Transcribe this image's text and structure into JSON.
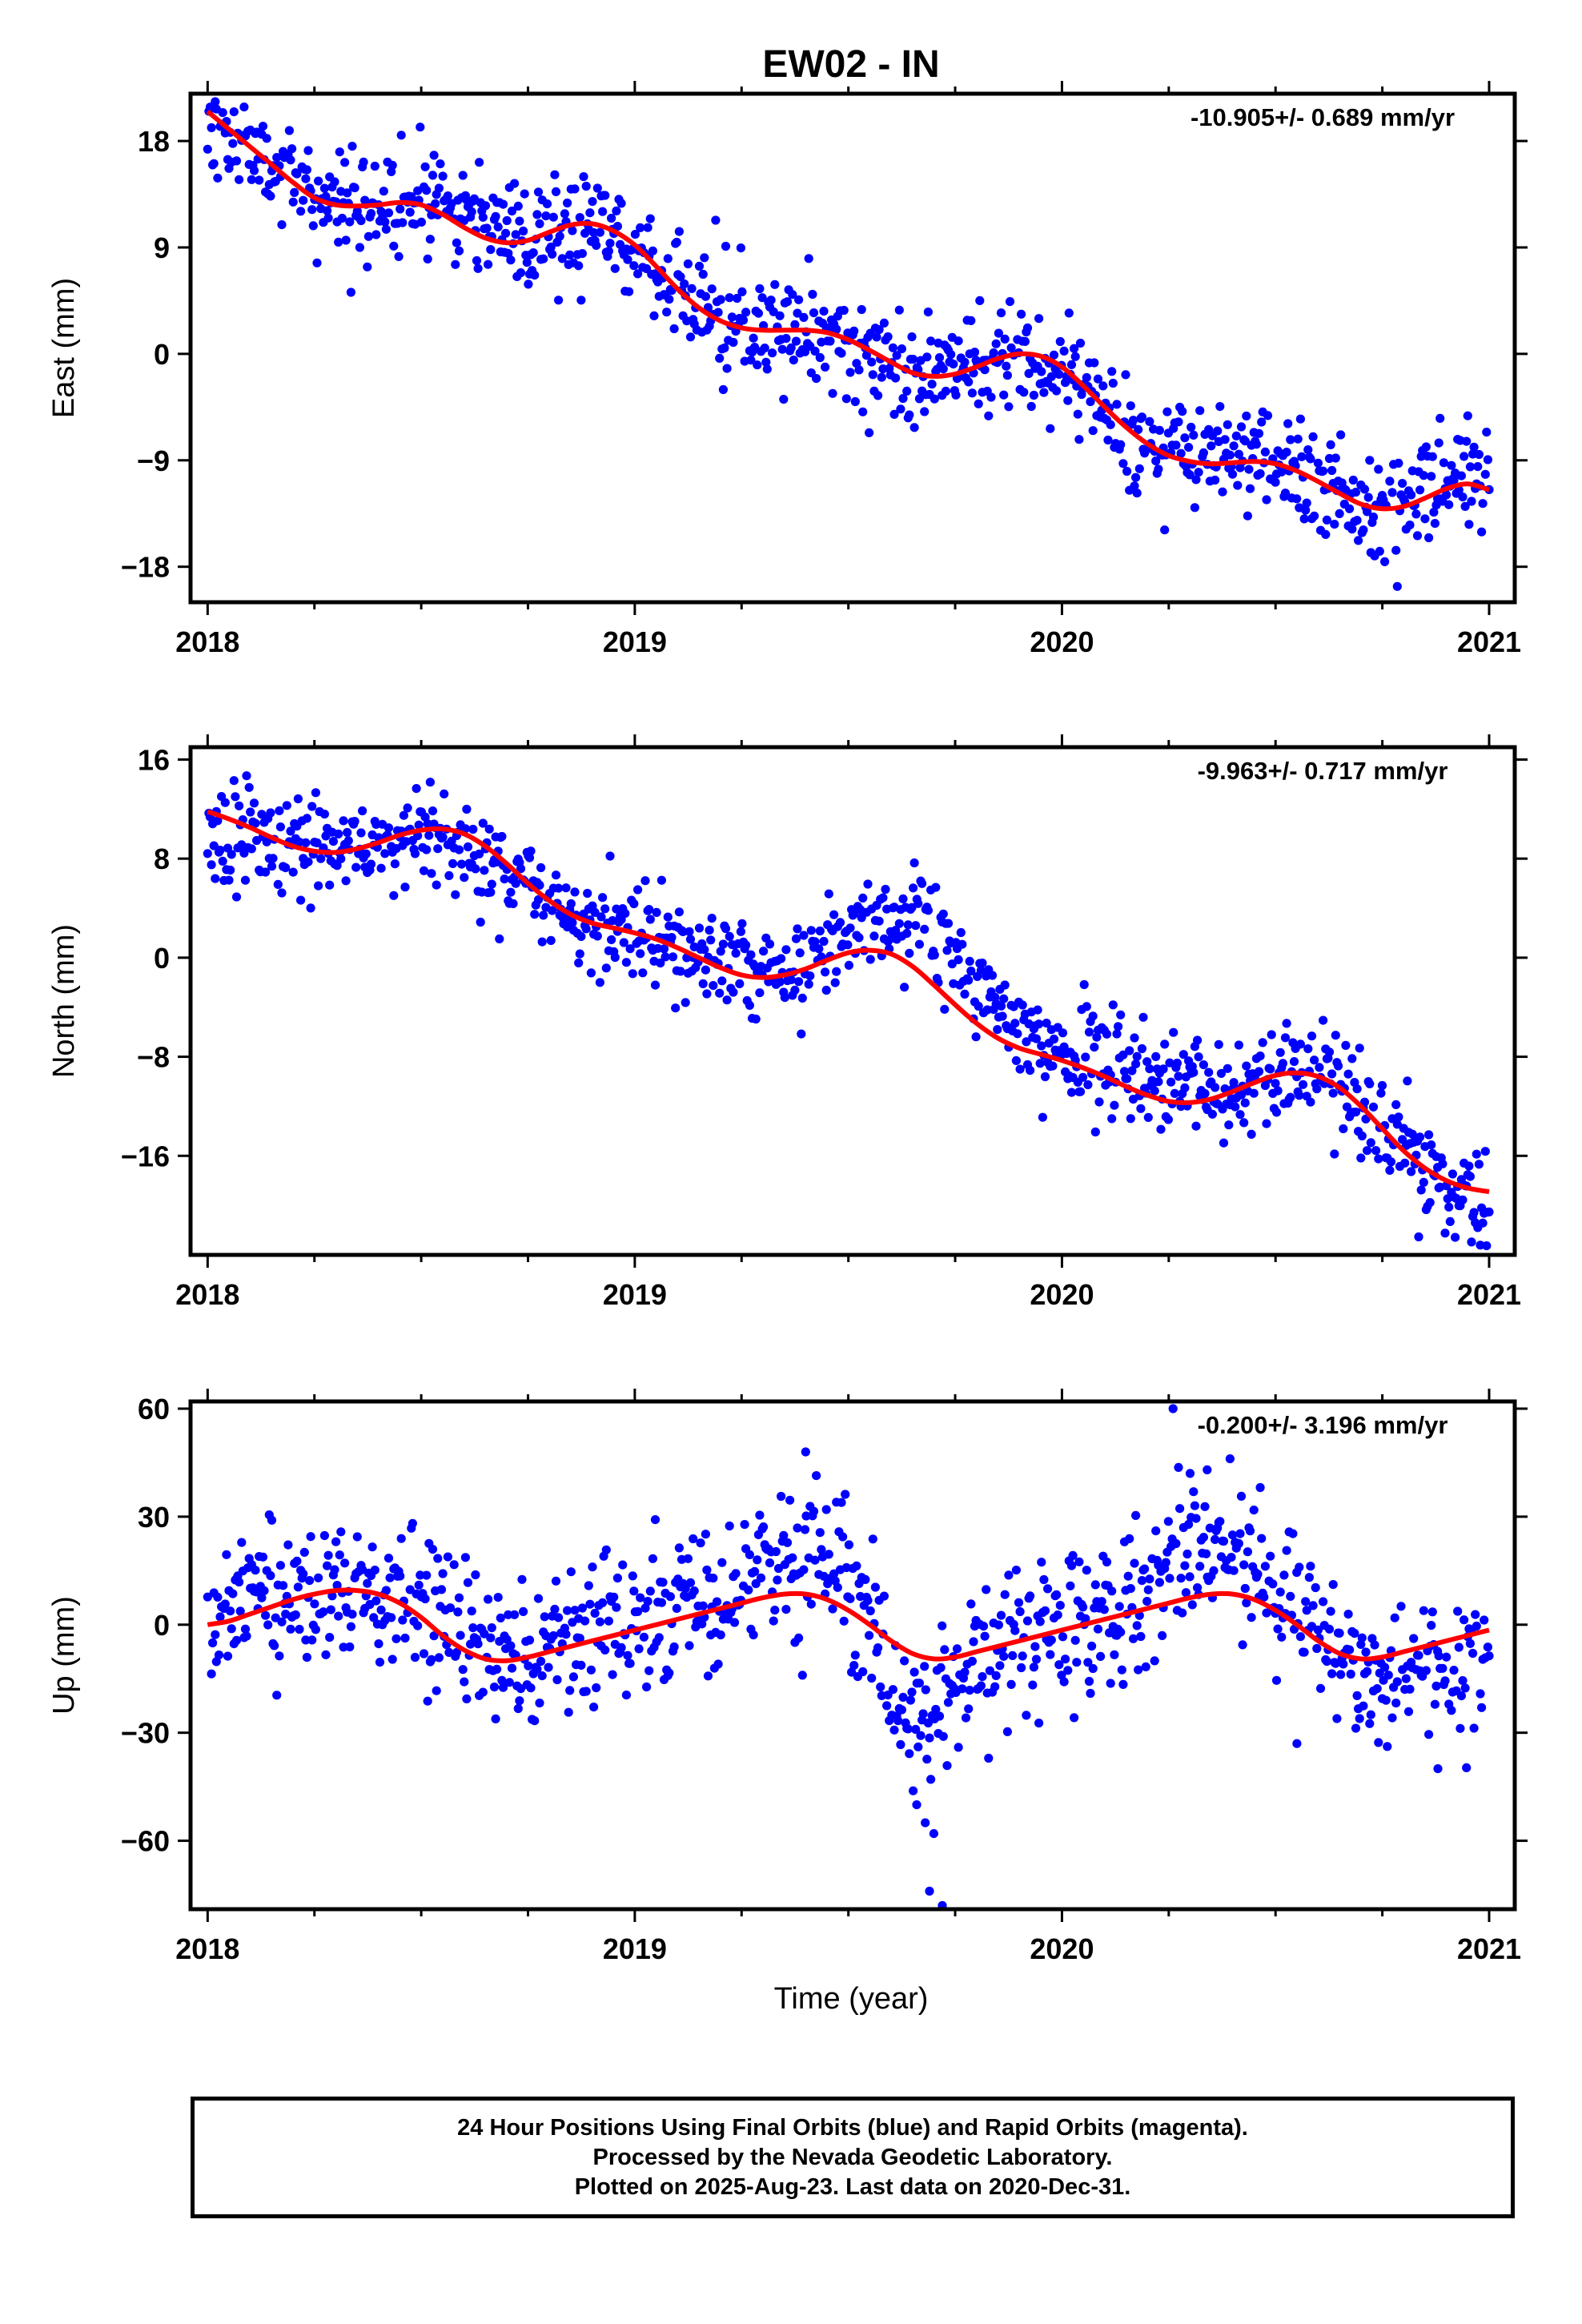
{
  "figure": {
    "title": "EW02 - IN",
    "footer_lines": [
      "24 Hour Positions Using Final Orbits (blue) and Rapid Orbits (magenta).",
      "Processed by the Nevada Geodetic Laboratory.",
      "Plotted on 2025-Aug-23. Last data on 2020-Dec-31."
    ],
    "xlabel": "Time (year)"
  },
  "chart_data": [
    {
      "type": "scatter",
      "component": "east",
      "ylabel": "East (mm)",
      "rate_label": "-10.905+/- 0.689 mm/yr",
      "xlim": [
        2017.96,
        2021.06
      ],
      "ylim": [
        -21,
        22
      ],
      "xticks": [
        2018,
        2019,
        2020,
        2021
      ],
      "yticks": [
        18,
        9,
        0,
        -9,
        -18
      ],
      "point_color": "#0000ff",
      "fit_color": "#ff0000",
      "series": [
        {
          "name": "Final Orbits",
          "color": "#0000ff",
          "seed": 11,
          "noise": 2.3,
          "x": [
            2018.0,
            2018.05,
            2018.1,
            2018.15,
            2018.2,
            2018.25,
            2018.3,
            2018.35,
            2018.4,
            2018.45,
            2018.5,
            2018.55,
            2018.6,
            2018.65,
            2018.7,
            2018.75,
            2018.8,
            2018.85,
            2018.9,
            2018.95,
            2019.0,
            2019.05,
            2019.1,
            2019.15,
            2019.2,
            2019.25,
            2019.3,
            2019.35,
            2019.4,
            2019.45,
            2019.5,
            2019.55,
            2019.6,
            2019.65,
            2019.7,
            2019.75,
            2019.8,
            2019.85,
            2019.9,
            2019.95,
            2020.0,
            2020.05,
            2020.1,
            2020.15,
            2020.2,
            2020.25,
            2020.3,
            2020.35,
            2020.4,
            2020.45,
            2020.5,
            2020.55,
            2020.6,
            2020.65,
            2020.7,
            2020.75,
            2020.8,
            2020.85,
            2020.9,
            2020.95,
            2021.0
          ],
          "y": [
            19.5,
            18.5,
            17.0,
            16.0,
            15.0,
            13.5,
            12.5,
            12.5,
            12.5,
            13.0,
            13.5,
            13.0,
            12.0,
            11.0,
            10.0,
            9.5,
            10.0,
            10.5,
            11.0,
            10.5,
            9.0,
            7.0,
            5.5,
            3.5,
            2.5,
            2.0,
            2.0,
            2.0,
            2.0,
            1.5,
            1.0,
            0.0,
            -1.0,
            -1.5,
            -1.5,
            -1.0,
            -0.5,
            0.0,
            0.0,
            -0.5,
            -1.5,
            -3.0,
            -5.0,
            -6.5,
            -8.0,
            -8.5,
            -9.0,
            -9.0,
            -9.0,
            -9.0,
            -9.5,
            -10.0,
            -11.0,
            -12.0,
            -13.0,
            -13.0,
            -12.5,
            -11.5,
            -10.5,
            -10.0,
            -10.5
          ]
        },
        {
          "name": "Fit",
          "color": "#ff0000",
          "x": [
            2018.0,
            2018.05,
            2018.1,
            2018.15,
            2018.2,
            2018.25,
            2018.3,
            2018.35,
            2018.4,
            2018.45,
            2018.5,
            2018.55,
            2018.6,
            2018.65,
            2018.7,
            2018.75,
            2018.8,
            2018.85,
            2018.9,
            2018.95,
            2019.0,
            2019.05,
            2019.1,
            2019.15,
            2019.2,
            2019.25,
            2019.3,
            2019.35,
            2019.4,
            2019.45,
            2019.5,
            2019.55,
            2019.6,
            2019.65,
            2019.7,
            2019.75,
            2019.8,
            2019.85,
            2019.9,
            2019.95,
            2020.0,
            2020.05,
            2020.1,
            2020.15,
            2020.2,
            2020.25,
            2020.3,
            2020.35,
            2020.4,
            2020.45,
            2020.5,
            2020.55,
            2020.6,
            2020.65,
            2020.7,
            2020.75,
            2020.8,
            2020.85,
            2020.9,
            2020.95,
            2021.0
          ],
          "y": [
            20.5,
            19.0,
            17.5,
            16.0,
            14.5,
            13.2,
            12.6,
            12.5,
            12.6,
            12.8,
            12.6,
            11.8,
            10.7,
            9.8,
            9.4,
            9.6,
            10.3,
            10.9,
            11.0,
            10.4,
            9.2,
            7.4,
            5.5,
            3.9,
            2.8,
            2.2,
            2.0,
            2.0,
            2.0,
            1.8,
            1.2,
            0.3,
            -0.7,
            -1.6,
            -1.9,
            -1.7,
            -1.1,
            -0.4,
            0.0,
            -0.2,
            -1.1,
            -2.7,
            -4.5,
            -6.2,
            -7.6,
            -8.6,
            -9.1,
            -9.3,
            -9.2,
            -9.1,
            -9.3,
            -9.9,
            -10.8,
            -11.8,
            -12.7,
            -13.1,
            -12.9,
            -12.2,
            -11.4,
            -11.0,
            -11.5
          ]
        }
      ]
    },
    {
      "type": "scatter",
      "component": "north",
      "ylabel": "North (mm)",
      "rate_label": "-9.963+/- 0.717 mm/yr",
      "xlim": [
        2017.96,
        2021.06
      ],
      "ylim": [
        -24,
        17
      ],
      "xticks": [
        2018,
        2019,
        2020,
        2021
      ],
      "yticks": [
        16,
        8,
        0,
        -8,
        -16
      ],
      "point_color": "#0000ff",
      "fit_color": "#ff0000",
      "series": [
        {
          "name": "Final Orbits",
          "color": "#0000ff",
          "seed": 23,
          "noise": 2.0,
          "x": [
            2018.0,
            2018.05,
            2018.1,
            2018.15,
            2018.2,
            2018.25,
            2018.3,
            2018.35,
            2018.4,
            2018.45,
            2018.5,
            2018.55,
            2018.6,
            2018.65,
            2018.7,
            2018.75,
            2018.8,
            2018.85,
            2018.9,
            2018.95,
            2019.0,
            2019.05,
            2019.1,
            2019.15,
            2019.2,
            2019.25,
            2019.3,
            2019.35,
            2019.4,
            2019.45,
            2019.5,
            2019.55,
            2019.6,
            2019.65,
            2019.7,
            2019.75,
            2019.8,
            2019.85,
            2019.9,
            2019.95,
            2020.0,
            2020.05,
            2020.1,
            2020.15,
            2020.2,
            2020.25,
            2020.3,
            2020.35,
            2020.4,
            2020.45,
            2020.5,
            2020.55,
            2020.6,
            2020.65,
            2020.7,
            2020.75,
            2020.8,
            2020.85,
            2020.9,
            2020.95,
            2021.0
          ],
          "y": [
            11.0,
            10.5,
            10.0,
            9.0,
            8.5,
            8.5,
            8.5,
            9.0,
            9.0,
            9.5,
            10.0,
            9.5,
            9.0,
            8.0,
            7.0,
            5.5,
            4.0,
            3.0,
            2.5,
            2.5,
            2.0,
            1.5,
            1.0,
            0.5,
            -0.5,
            -1.0,
            -1.5,
            -1.0,
            -0.5,
            0.5,
            1.5,
            2.5,
            3.0,
            4.0,
            2.5,
            0.0,
            -2.0,
            -4.0,
            -5.5,
            -7.0,
            -8.0,
            -8.5,
            -9.0,
            -9.0,
            -9.5,
            -10.0,
            -10.5,
            -10.5,
            -10.5,
            -10.0,
            -9.5,
            -9.5,
            -9.5,
            -10.0,
            -12.0,
            -14.0,
            -15.5,
            -16.5,
            -18.0,
            -19.5,
            -21.0
          ]
        },
        {
          "name": "Fit",
          "color": "#ff0000",
          "x": [
            2018.0,
            2018.05,
            2018.1,
            2018.15,
            2018.2,
            2018.25,
            2018.3,
            2018.35,
            2018.4,
            2018.45,
            2018.5,
            2018.55,
            2018.6,
            2018.65,
            2018.7,
            2018.75,
            2018.8,
            2018.85,
            2018.9,
            2018.95,
            2019.0,
            2019.05,
            2019.1,
            2019.15,
            2019.2,
            2019.25,
            2019.3,
            2019.35,
            2019.4,
            2019.45,
            2019.5,
            2019.55,
            2019.6,
            2019.65,
            2019.7,
            2019.75,
            2019.8,
            2019.85,
            2019.9,
            2019.95,
            2020.0,
            2020.05,
            2020.1,
            2020.15,
            2020.2,
            2020.25,
            2020.3,
            2020.35,
            2020.4,
            2020.45,
            2020.5,
            2020.55,
            2020.6,
            2020.65,
            2020.7,
            2020.75,
            2020.8,
            2020.85,
            2020.9,
            2020.95,
            2021.0
          ],
          "y": [
            11.8,
            11.2,
            10.5,
            9.7,
            9.0,
            8.6,
            8.5,
            8.8,
            9.3,
            9.9,
            10.3,
            10.4,
            10.0,
            9.0,
            7.6,
            6.0,
            4.6,
            3.5,
            2.8,
            2.4,
            2.0,
            1.5,
            0.8,
            0.0,
            -0.8,
            -1.4,
            -1.6,
            -1.4,
            -0.9,
            -0.2,
            0.4,
            0.6,
            0.3,
            -0.7,
            -2.2,
            -3.8,
            -5.3,
            -6.5,
            -7.3,
            -7.8,
            -8.3,
            -8.9,
            -9.6,
            -10.4,
            -11.1,
            -11.6,
            -11.7,
            -11.4,
            -10.8,
            -10.1,
            -9.5,
            -9.3,
            -9.6,
            -10.5,
            -12.0,
            -13.8,
            -15.6,
            -17.0,
            -18.0,
            -18.6,
            -18.9
          ]
        }
      ]
    },
    {
      "type": "scatter",
      "component": "up",
      "ylabel": "Up (mm)",
      "rate_label": "-0.200+/- 3.196 mm/yr",
      "xlim": [
        2017.96,
        2021.06
      ],
      "ylim": [
        -79,
        62
      ],
      "xticks": [
        2018,
        2019,
        2020,
        2021
      ],
      "yticks": [
        60,
        30,
        0,
        -30,
        -60
      ],
      "point_color": "#0000ff",
      "fit_color": "#ff0000",
      "series": [
        {
          "name": "Final Orbits",
          "color": "#0000ff",
          "seed": 37,
          "noise": 10.5,
          "x": [
            2018.0,
            2018.05,
            2018.1,
            2018.15,
            2018.2,
            2018.25,
            2018.3,
            2018.35,
            2018.4,
            2018.45,
            2018.5,
            2018.55,
            2018.6,
            2018.65,
            2018.7,
            2018.75,
            2018.8,
            2018.85,
            2018.9,
            2018.95,
            2019.0,
            2019.05,
            2019.1,
            2019.15,
            2019.2,
            2019.25,
            2019.3,
            2019.35,
            2019.4,
            2019.45,
            2019.5,
            2019.55,
            2019.6,
            2019.65,
            2019.7,
            2019.75,
            2019.8,
            2019.85,
            2019.9,
            2019.95,
            2020.0,
            2020.05,
            2020.1,
            2020.15,
            2020.2,
            2020.25,
            2020.3,
            2020.35,
            2020.4,
            2020.45,
            2020.5,
            2020.55,
            2020.6,
            2020.65,
            2020.7,
            2020.75,
            2020.8,
            2020.85,
            2020.9,
            2020.95,
            2021.0
          ],
          "y": [
            2,
            4,
            5,
            5,
            6,
            8,
            10,
            11,
            9,
            7,
            5,
            1,
            -3,
            -8,
            -10,
            -9,
            -7,
            -5,
            -3,
            -1,
            1,
            3,
            5,
            7,
            8,
            10,
            12,
            15,
            17,
            18,
            12,
            2,
            -15,
            -30,
            -28,
            -15,
            -8,
            -5,
            -3,
            -2,
            0,
            2,
            4,
            7,
            10,
            14,
            18,
            22,
            22,
            18,
            12,
            5,
            -5,
            -10,
            -12,
            -12,
            -13,
            -15,
            -16,
            -14,
            -10
          ]
        },
        {
          "name": "Fit",
          "color": "#ff0000",
          "x": [
            2018.0,
            2018.05,
            2018.1,
            2018.15,
            2018.2,
            2018.25,
            2018.3,
            2018.35,
            2018.4,
            2018.45,
            2018.5,
            2018.55,
            2018.6,
            2018.65,
            2018.7,
            2018.75,
            2018.8,
            2018.85,
            2018.9,
            2018.95,
            2019.0,
            2019.05,
            2019.1,
            2019.15,
            2019.2,
            2019.25,
            2019.3,
            2019.35,
            2019.4,
            2019.45,
            2019.5,
            2019.55,
            2019.6,
            2019.65,
            2019.7,
            2019.75,
            2019.8,
            2019.85,
            2019.9,
            2019.95,
            2020.0,
            2020.05,
            2020.1,
            2020.15,
            2020.2,
            2020.25,
            2020.3,
            2020.35,
            2020.4,
            2020.45,
            2020.5,
            2020.55,
            2020.6,
            2020.65,
            2020.7,
            2020.75,
            2020.8,
            2020.85,
            2020.9,
            2020.95,
            2021.0
          ],
          "y": [
            0,
            1,
            3,
            5,
            7,
            8.5,
            9.5,
            9.5,
            8.5,
            6,
            2,
            -3,
            -7,
            -9.5,
            -10,
            -9,
            -7.5,
            -6,
            -4.5,
            -3,
            -1.5,
            0,
            1.5,
            3,
            4.5,
            6,
            7.5,
            8.5,
            8.5,
            7,
            4,
            0,
            -4.5,
            -8,
            -9.5,
            -9,
            -7.5,
            -6,
            -4.5,
            -3,
            -1.5,
            0,
            1.5,
            3,
            4.5,
            6,
            7.5,
            8.5,
            8.5,
            7,
            4,
            0,
            -4.5,
            -8,
            -9.5,
            -9,
            -7.5,
            -6,
            -4.5,
            -3,
            -1.5
          ]
        },
        {
          "name": "Outliers",
          "color": "#0000ff",
          "x": [
            2019.4,
            2019.66,
            2019.68,
            2019.69,
            2019.7,
            2019.72,
            2020.26,
            2020.3,
            2020.34,
            2020.55,
            2020.88
          ],
          "y": [
            48,
            -50,
            -55,
            -74,
            -58,
            -78,
            60,
            42,
            43,
            -33,
            -40
          ]
        }
      ]
    }
  ]
}
